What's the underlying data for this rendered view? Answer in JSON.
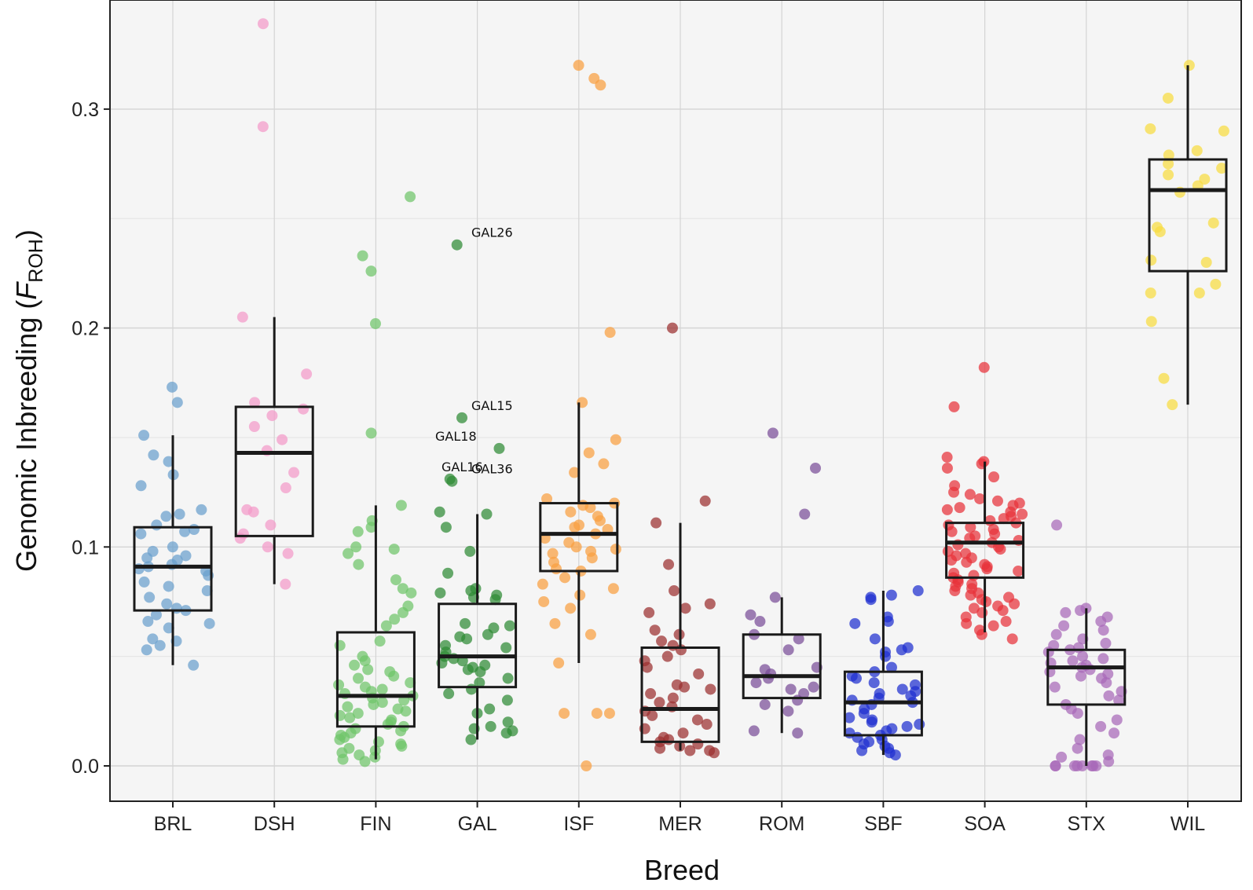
{
  "chart_data": {
    "type": "box",
    "xlabel": "Breed",
    "ylabel_main": "Genomic Inbreeding (",
    "ylabel_italic": "F",
    "ylabel_sub": "ROH",
    "ylabel_close": ")",
    "ylim": [
      -0.015,
      0.35
    ],
    "yticks": [
      0.0,
      0.1,
      0.2,
      0.3
    ],
    "ytick_labels": [
      "0.0",
      "0.1",
      "0.2",
      "0.3"
    ],
    "grid": true,
    "categories": [
      "BRL",
      "DSH",
      "FIN",
      "GAL",
      "ISF",
      "MER",
      "ROM",
      "SBF",
      "SOA",
      "STX",
      "WIL"
    ],
    "colors": {
      "BRL": "#6a9fcd",
      "DSH": "#f49ac9",
      "FIN": "#6fc56a",
      "GAL": "#2e8b35",
      "ISF": "#f9a040",
      "MER": "#9b2f2f",
      "ROM": "#7a4e99",
      "SBF": "#1f2fd0",
      "SOA": "#e8323a",
      "STX": "#a768b8",
      "WIL": "#f8dc40"
    },
    "boxes": [
      {
        "breed": "BRL",
        "q1": 0.071,
        "median": 0.091,
        "q3": 0.109,
        "whisker_low": 0.046,
        "whisker_high": 0.151
      },
      {
        "breed": "DSH",
        "q1": 0.105,
        "median": 0.143,
        "q3": 0.164,
        "whisker_low": 0.083,
        "whisker_high": 0.205
      },
      {
        "breed": "FIN",
        "q1": 0.018,
        "median": 0.032,
        "q3": 0.061,
        "whisker_low": 0.003,
        "whisker_high": 0.119
      },
      {
        "breed": "GAL",
        "q1": 0.036,
        "median": 0.05,
        "q3": 0.074,
        "whisker_low": 0.012,
        "whisker_high": 0.115
      },
      {
        "breed": "ISF",
        "q1": 0.089,
        "median": 0.106,
        "q3": 0.12,
        "whisker_low": 0.047,
        "whisker_high": 0.166
      },
      {
        "breed": "MER",
        "q1": 0.011,
        "median": 0.026,
        "q3": 0.054,
        "whisker_low": 0.007,
        "whisker_high": 0.111
      },
      {
        "breed": "ROM",
        "q1": 0.031,
        "median": 0.041,
        "q3": 0.06,
        "whisker_low": 0.015,
        "whisker_high": 0.077
      },
      {
        "breed": "SBF",
        "q1": 0.014,
        "median": 0.029,
        "q3": 0.043,
        "whisker_low": 0.005,
        "whisker_high": 0.08
      },
      {
        "breed": "SOA",
        "q1": 0.086,
        "median": 0.102,
        "q3": 0.111,
        "whisker_low": 0.061,
        "whisker_high": 0.139
      },
      {
        "breed": "STX",
        "q1": 0.028,
        "median": 0.045,
        "q3": 0.053,
        "whisker_low": 0.0,
        "whisker_high": 0.072
      },
      {
        "breed": "WIL",
        "q1": 0.226,
        "median": 0.263,
        "q3": 0.277,
        "whisker_low": 0.165,
        "whisker_high": 0.32
      }
    ],
    "points": {
      "BRL": [
        0.173,
        0.166,
        0.151,
        0.142,
        0.139,
        0.133,
        0.128,
        0.117,
        0.115,
        0.114,
        0.11,
        0.108,
        0.107,
        0.106,
        0.1,
        0.098,
        0.096,
        0.095,
        0.094,
        0.092,
        0.091,
        0.09,
        0.089,
        0.087,
        0.084,
        0.082,
        0.08,
        0.077,
        0.074,
        0.072,
        0.071,
        0.069,
        0.066,
        0.065,
        0.063,
        0.058,
        0.057,
        0.055,
        0.053,
        0.046
      ],
      "DSH": [
        0.339,
        0.292,
        0.205,
        0.179,
        0.166,
        0.163,
        0.16,
        0.155,
        0.149,
        0.144,
        0.134,
        0.127,
        0.117,
        0.116,
        0.11,
        0.106,
        0.104,
        0.1,
        0.097,
        0.083
      ],
      "FIN": [
        0.26,
        0.233,
        0.226,
        0.202,
        0.152,
        0.119,
        0.112,
        0.109,
        0.107,
        0.1,
        0.099,
        0.097,
        0.092,
        0.085,
        0.081,
        0.079,
        0.073,
        0.07,
        0.067,
        0.064,
        0.057,
        0.055,
        0.05,
        0.048,
        0.046,
        0.044,
        0.043,
        0.041,
        0.04,
        0.038,
        0.037,
        0.036,
        0.035,
        0.034,
        0.033,
        0.032,
        0.031,
        0.03,
        0.029,
        0.028,
        0.027,
        0.026,
        0.025,
        0.024,
        0.023,
        0.022,
        0.021,
        0.02,
        0.019,
        0.018,
        0.017,
        0.016,
        0.015,
        0.014,
        0.013,
        0.012,
        0.011,
        0.01,
        0.009,
        0.008,
        0.007,
        0.006,
        0.005,
        0.004,
        0.003,
        0.002
      ],
      "GAL": [
        0.238,
        0.159,
        0.145,
        0.131,
        0.13,
        0.116,
        0.115,
        0.109,
        0.098,
        0.088,
        0.081,
        0.08,
        0.079,
        0.078,
        0.077,
        0.076,
        0.065,
        0.064,
        0.063,
        0.06,
        0.059,
        0.058,
        0.055,
        0.054,
        0.052,
        0.05,
        0.049,
        0.048,
        0.047,
        0.046,
        0.045,
        0.044,
        0.043,
        0.04,
        0.038,
        0.035,
        0.033,
        0.03,
        0.026,
        0.024,
        0.02,
        0.018,
        0.017,
        0.016,
        0.015,
        0.012
      ],
      "ISF": [
        0.32,
        0.314,
        0.311,
        0.198,
        0.166,
        0.149,
        0.143,
        0.138,
        0.134,
        0.122,
        0.12,
        0.119,
        0.118,
        0.116,
        0.114,
        0.112,
        0.11,
        0.109,
        0.108,
        0.106,
        0.104,
        0.102,
        0.1,
        0.099,
        0.098,
        0.097,
        0.095,
        0.093,
        0.09,
        0.089,
        0.086,
        0.083,
        0.081,
        0.078,
        0.075,
        0.072,
        0.065,
        0.06,
        0.047,
        0.024,
        0.024,
        0.024,
        0.0
      ],
      "MER": [
        0.2,
        0.121,
        0.111,
        0.092,
        0.08,
        0.074,
        0.072,
        0.07,
        0.062,
        0.06,
        0.057,
        0.055,
        0.053,
        0.05,
        0.048,
        0.045,
        0.042,
        0.037,
        0.036,
        0.035,
        0.033,
        0.031,
        0.029,
        0.027,
        0.025,
        0.023,
        0.021,
        0.019,
        0.017,
        0.015,
        0.013,
        0.012,
        0.011,
        0.01,
        0.009,
        0.008,
        0.007,
        0.007,
        0.006
      ],
      "ROM": [
        0.152,
        0.136,
        0.115,
        0.077,
        0.069,
        0.066,
        0.06,
        0.058,
        0.053,
        0.045,
        0.044,
        0.042,
        0.04,
        0.038,
        0.036,
        0.035,
        0.033,
        0.03,
        0.028,
        0.025,
        0.016,
        0.015
      ],
      "SBF": [
        0.08,
        0.078,
        0.077,
        0.076,
        0.068,
        0.066,
        0.065,
        0.058,
        0.054,
        0.053,
        0.052,
        0.05,
        0.045,
        0.043,
        0.041,
        0.04,
        0.038,
        0.037,
        0.035,
        0.034,
        0.033,
        0.032,
        0.031,
        0.03,
        0.029,
        0.028,
        0.026,
        0.024,
        0.022,
        0.021,
        0.02,
        0.019,
        0.018,
        0.017,
        0.016,
        0.015,
        0.014,
        0.013,
        0.012,
        0.011,
        0.01,
        0.009,
        0.008,
        0.007,
        0.006,
        0.005
      ],
      "SOA": [
        0.182,
        0.164,
        0.141,
        0.139,
        0.138,
        0.136,
        0.132,
        0.128,
        0.125,
        0.124,
        0.122,
        0.121,
        0.12,
        0.119,
        0.118,
        0.117,
        0.116,
        0.115,
        0.114,
        0.113,
        0.112,
        0.111,
        0.11,
        0.109,
        0.108,
        0.107,
        0.106,
        0.105,
        0.104,
        0.103,
        0.102,
        0.101,
        0.1,
        0.099,
        0.098,
        0.097,
        0.096,
        0.095,
        0.094,
        0.093,
        0.092,
        0.091,
        0.09,
        0.089,
        0.088,
        0.087,
        0.086,
        0.085,
        0.084,
        0.083,
        0.082,
        0.081,
        0.08,
        0.079,
        0.078,
        0.077,
        0.076,
        0.075,
        0.074,
        0.073,
        0.072,
        0.071,
        0.07,
        0.068,
        0.066,
        0.065,
        0.064,
        0.062,
        0.06,
        0.058
      ],
      "STX": [
        0.11,
        0.072,
        0.071,
        0.07,
        0.068,
        0.066,
        0.064,
        0.062,
        0.06,
        0.058,
        0.056,
        0.055,
        0.054,
        0.053,
        0.052,
        0.05,
        0.049,
        0.048,
        0.047,
        0.046,
        0.045,
        0.044,
        0.043,
        0.042,
        0.041,
        0.04,
        0.038,
        0.036,
        0.034,
        0.032,
        0.03,
        0.028,
        0.026,
        0.024,
        0.021,
        0.018,
        0.015,
        0.012,
        0.008,
        0.005,
        0.004,
        0.002,
        0.0,
        0.0,
        0.0,
        0.0,
        0.0,
        0.0,
        0.0,
        0.0
      ],
      "WIL": [
        0.32,
        0.305,
        0.291,
        0.29,
        0.281,
        0.279,
        0.275,
        0.273,
        0.27,
        0.268,
        0.265,
        0.262,
        0.248,
        0.246,
        0.244,
        0.231,
        0.23,
        0.22,
        0.216,
        0.216,
        0.203,
        0.177,
        0.165
      ]
    },
    "annotations": [
      {
        "label": "GAL26",
        "breed": "GAL",
        "value": 0.238
      },
      {
        "label": "GAL15",
        "breed": "GAL",
        "value": 0.159
      },
      {
        "label": "GAL18",
        "breed": "GAL",
        "value": 0.145
      },
      {
        "label": "GAL16",
        "breed": "GAL",
        "value": 0.131
      },
      {
        "label": "GAL36",
        "breed": "GAL",
        "value": 0.13
      }
    ]
  }
}
